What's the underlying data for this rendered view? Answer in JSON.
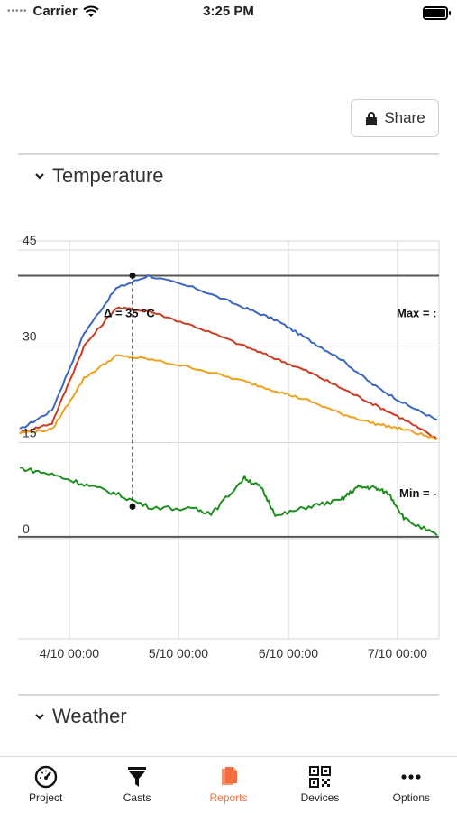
{
  "status_bar": {
    "carrier": "Carrier",
    "time": "3:25 PM"
  },
  "share_button": {
    "label": "Share"
  },
  "sections": {
    "temperature": {
      "label": "Temperature"
    },
    "weather": {
      "label": "Weather"
    }
  },
  "chart_data": {
    "type": "line",
    "y_ticks": [
      "45",
      "30",
      "15",
      "0"
    ],
    "ylim": [
      0,
      45
    ],
    "x_ticks": [
      "4/10 00:00",
      "5/10 00:00",
      "6/10 00:00",
      "7/10 00:00"
    ],
    "annotations": {
      "delta": "Δ = 35 °C",
      "max": "Max = :",
      "min": "Min = -"
    },
    "colors": {
      "blue": "#3a66c4",
      "red": "#cc3b22",
      "orange": "#f0a11c",
      "green": "#1e8e1e"
    },
    "series": [
      {
        "color": "blue",
        "values": [
          [
            0,
            17
          ],
          [
            10,
            20
          ],
          [
            20,
            32
          ],
          [
            30,
            39
          ],
          [
            40,
            41
          ],
          [
            55,
            39
          ],
          [
            70,
            36
          ],
          [
            80,
            34
          ],
          [
            90,
            31
          ],
          [
            100,
            28
          ],
          [
            110,
            24
          ],
          [
            120,
            21
          ],
          [
            130,
            18.5
          ]
        ]
      },
      {
        "color": "red",
        "values": [
          [
            0,
            16.5
          ],
          [
            10,
            18
          ],
          [
            20,
            30
          ],
          [
            30,
            36
          ],
          [
            40,
            35.5
          ],
          [
            55,
            33
          ],
          [
            70,
            30
          ],
          [
            80,
            28
          ],
          [
            90,
            26
          ],
          [
            100,
            23.5
          ],
          [
            110,
            21
          ],
          [
            120,
            18.5
          ],
          [
            130,
            15.5
          ]
        ]
      },
      {
        "color": "orange",
        "values": [
          [
            0,
            16.5
          ],
          [
            10,
            17
          ],
          [
            20,
            25
          ],
          [
            30,
            28.5
          ],
          [
            40,
            28
          ],
          [
            55,
            26.5
          ],
          [
            70,
            24.5
          ],
          [
            80,
            23
          ],
          [
            90,
            21.5
          ],
          [
            100,
            19.5
          ],
          [
            110,
            18
          ],
          [
            120,
            17
          ],
          [
            130,
            15.5
          ]
        ]
      },
      {
        "color": "green",
        "values": [
          [
            0,
            11
          ],
          [
            10,
            10
          ],
          [
            20,
            8.5
          ],
          [
            30,
            7
          ],
          [
            40,
            5
          ],
          [
            55,
            4.5
          ],
          [
            60,
            4
          ],
          [
            70,
            9.5
          ],
          [
            75,
            8
          ],
          [
            80,
            3.5
          ],
          [
            90,
            5
          ],
          [
            100,
            6
          ],
          [
            105,
            8
          ],
          [
            110,
            8
          ],
          [
            115,
            7
          ],
          [
            120,
            3
          ],
          [
            130,
            0.5
          ]
        ]
      }
    ]
  },
  "tab_bar": {
    "items": [
      {
        "label": "Project",
        "icon": "gauge-icon"
      },
      {
        "label": "Casts",
        "icon": "funnel-icon"
      },
      {
        "label": "Reports",
        "icon": "reports-icon"
      },
      {
        "label": "Devices",
        "icon": "qr-code-icon"
      },
      {
        "label": "Options",
        "icon": "more-icon"
      }
    ],
    "active_color": "#f26c3d"
  }
}
